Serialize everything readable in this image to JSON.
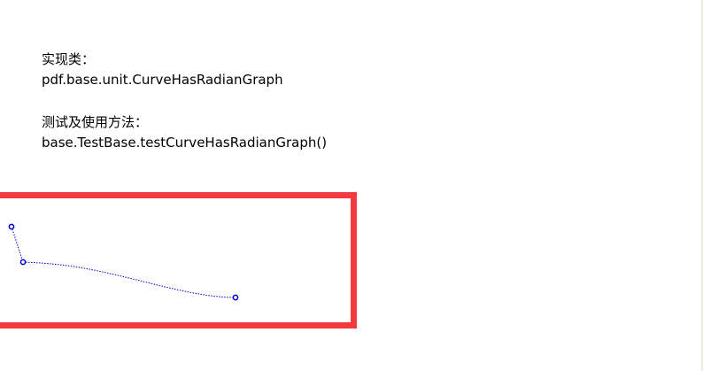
{
  "content": {
    "impl_label": "实现类：",
    "impl_class": "pdf.base.unit.CurveHasRadianGraph",
    "test_label": "测试及使用方法：",
    "test_method": "base.TestBase.testCurveHasRadianGraph()"
  },
  "colors": {
    "highlight_border": "#f53a3e",
    "curve": "#0000cc",
    "right_border": "#e9eedb"
  }
}
